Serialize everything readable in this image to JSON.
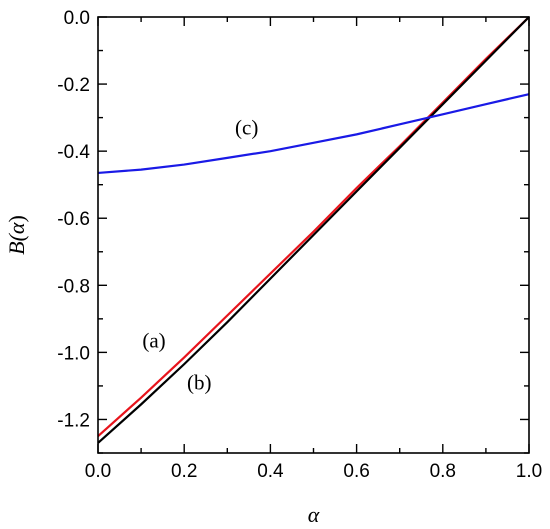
{
  "chart_data": {
    "type": "line",
    "title": "",
    "xlabel": "α",
    "ylabel_main": "B(",
    "ylabel_var": "α",
    "ylabel_close": ")",
    "xlim": [
      0.0,
      1.0
    ],
    "ylim": [
      -1.3,
      0.0
    ],
    "xticks": [
      0.0,
      0.2,
      0.4,
      0.6,
      0.8,
      1.0
    ],
    "xtick_labels": [
      "0.0",
      "0.2",
      "0.4",
      "0.6",
      "0.8",
      "1.0"
    ],
    "yticks": [
      0.0,
      -0.2,
      -0.4,
      -0.6,
      -0.8,
      -1.0,
      -1.2
    ],
    "ytick_labels": [
      "0.0",
      "-0.2",
      "-0.4",
      "-0.6",
      "-0.8",
      "-1.0",
      "-1.2"
    ],
    "grid": false,
    "series": [
      {
        "label": "(a)",
        "color": "#e8141c",
        "x": [
          0.0,
          0.1,
          0.2,
          0.3,
          0.4,
          0.5,
          0.6,
          0.7,
          0.8,
          0.9,
          1.0
        ],
        "y": [
          -1.25,
          -1.135,
          -1.015,
          -0.89,
          -0.765,
          -0.64,
          -0.51,
          -0.385,
          -0.255,
          -0.125,
          0.0
        ]
      },
      {
        "label": "(b)",
        "color": "#000000",
        "x": [
          0.0,
          0.1,
          0.2,
          0.3,
          0.4,
          0.5,
          0.6,
          0.7,
          0.8,
          0.9,
          1.0
        ],
        "y": [
          -1.27,
          -1.155,
          -1.035,
          -0.91,
          -0.78,
          -0.65,
          -0.52,
          -0.39,
          -0.26,
          -0.13,
          0.0
        ]
      },
      {
        "label": "(c)",
        "color": "#1a1ae6",
        "x": [
          0.0,
          0.1,
          0.2,
          0.3,
          0.4,
          0.5,
          0.6,
          0.7,
          0.8,
          0.9,
          1.0
        ],
        "y": [
          -0.465,
          -0.455,
          -0.44,
          -0.42,
          -0.4,
          -0.375,
          -0.35,
          -0.32,
          -0.29,
          -0.26,
          -0.23
        ]
      }
    ],
    "annotations": [
      {
        "text": "(a)",
        "x": 0.13,
        "y": -0.985
      },
      {
        "text": "(b)",
        "x": 0.235,
        "y": -1.11
      },
      {
        "text": "(c)",
        "x": 0.345,
        "y": -0.35
      }
    ]
  }
}
